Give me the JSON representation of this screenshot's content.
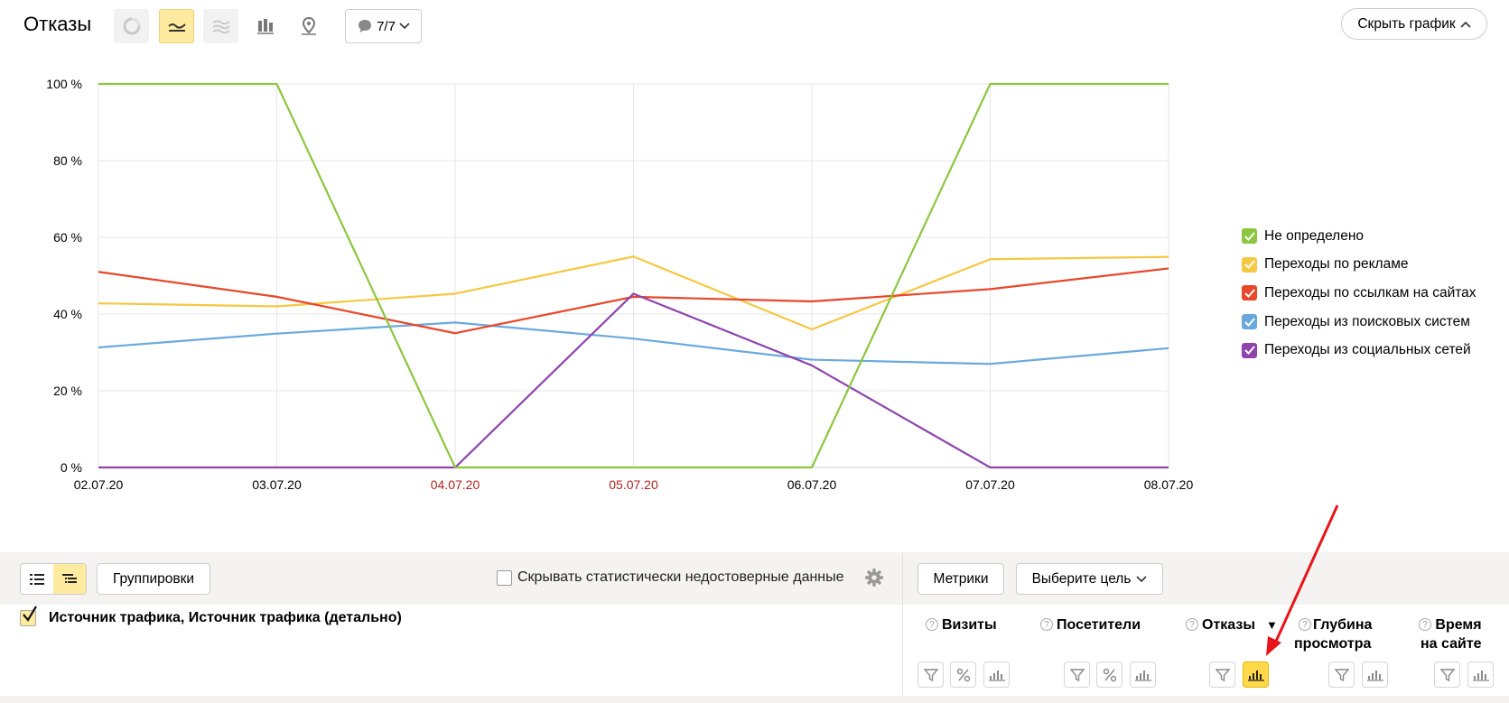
{
  "header": {
    "title": "Отказы",
    "annotations_label": "7/7",
    "hide_chart_label": "Скрыть график"
  },
  "chart_data": {
    "type": "line",
    "x": [
      "02.07.20",
      "03.07.20",
      "04.07.20",
      "05.07.20",
      "06.07.20",
      "07.07.20",
      "08.07.20"
    ],
    "x_label_colors": [
      "#000000",
      "#000000",
      "#b22222",
      "#b22222",
      "#000000",
      "#000000",
      "#000000"
    ],
    "yticks": [
      "0 %",
      "20 %",
      "40 %",
      "60 %",
      "80 %",
      "100 %"
    ],
    "ylim": [
      0,
      100
    ],
    "grid": true,
    "legend_position": "right",
    "series": [
      {
        "name": "Не определено",
        "color": "#8cc63e",
        "values": [
          100,
          100,
          0,
          0,
          0,
          100,
          100
        ]
      },
      {
        "name": "Переходы по рекламе",
        "color": "#f5c842",
        "values": [
          42.8,
          42,
          45.3,
          55,
          36,
          54.3,
          54.9
        ]
      },
      {
        "name": "Переходы по ссылкам на сайтах",
        "color": "#e8472a",
        "values": [
          51,
          44.5,
          35,
          44.5,
          43.3,
          46.5,
          51.9
        ]
      },
      {
        "name": "Переходы из поисковых систем",
        "color": "#6aa9de",
        "values": [
          31.3,
          34.9,
          37.8,
          33.6,
          28.1,
          27,
          31.1
        ]
      },
      {
        "name": "Переходы из социальных сетей",
        "color": "#8e44ad",
        "values": [
          0,
          0,
          0,
          45.3,
          26.6,
          0,
          0
        ]
      }
    ]
  },
  "toolbar": {
    "groupings_label": "Группировки",
    "hide_unreliable_label": "Скрывать статистически недостоверные данные",
    "metrics_label": "Метрики",
    "goal_label": "Выберите цель"
  },
  "table": {
    "dimension_header": "Источник трафика, Источник трафика (детально)",
    "columns": [
      {
        "line1": "Визиты",
        "line2": ""
      },
      {
        "line1": "Посетители",
        "line2": ""
      },
      {
        "line1": "Отказы",
        "line2": ""
      },
      {
        "line1": "Глубина",
        "line2": "просмотра"
      },
      {
        "line1": "Время",
        "line2": "на сайте"
      }
    ],
    "sort_indicator": "▼"
  },
  "colors": {
    "accent": "#ffeba0",
    "accent_active": "#ffd94a",
    "arrow": "#e8141a"
  }
}
